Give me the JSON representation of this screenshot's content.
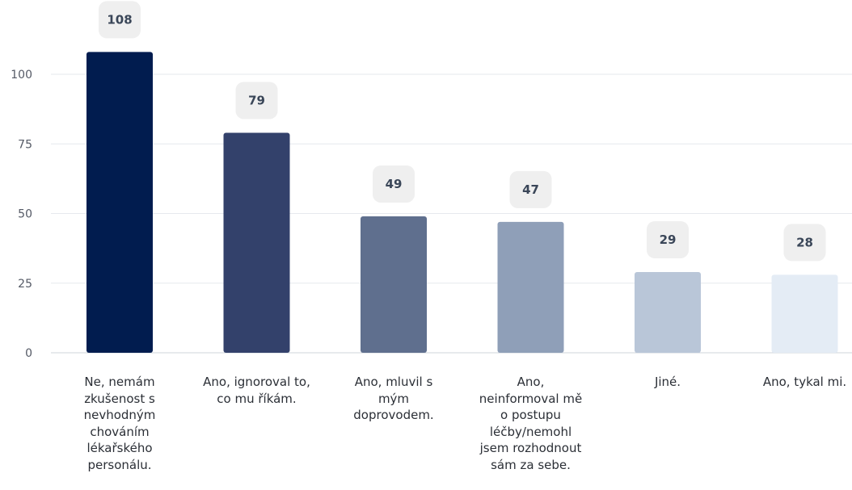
{
  "chart_data": {
    "type": "bar",
    "categories": [
      "Ne, nemám zkušenost s nevhodným chováním lékařského personálu.",
      "Ano, ignoroval to, co mu říkám.",
      "Ano, mluvil s mým doprovodem.",
      "Ano, neinformoval mě o postupu léčby/nemohl jsem rozhodnout sám za sebe.",
      "Jiné.",
      "Ano, tykal mi."
    ],
    "category_lines": [
      [
        "Ne, nemám",
        "zkušenost s",
        "nevhodným",
        "chováním",
        "lékařského",
        "personálu."
      ],
      [
        "Ano, ignoroval to,",
        "co mu říkám."
      ],
      [
        "Ano, mluvil s",
        "mým",
        "doprovodem."
      ],
      [
        "Ano,",
        "neinformoval mě",
        "o postupu",
        "léčby/nemohl",
        "jsem rozhodnout",
        "sám za sebe."
      ],
      [
        "Jiné."
      ],
      [
        "Ano, tykal mi."
      ]
    ],
    "values": [
      108,
      79,
      49,
      47,
      29,
      28
    ],
    "colors": [
      "#011c4f",
      "#33416b",
      "#5f6f8e",
      "#8f9fb8",
      "#b9c6d8",
      "#e4ecf5"
    ],
    "yticks": [
      0,
      25,
      50,
      75,
      100
    ],
    "ylim": [
      0,
      115
    ],
    "grid": true,
    "title": "",
    "xlabel": "",
    "ylabel": ""
  }
}
